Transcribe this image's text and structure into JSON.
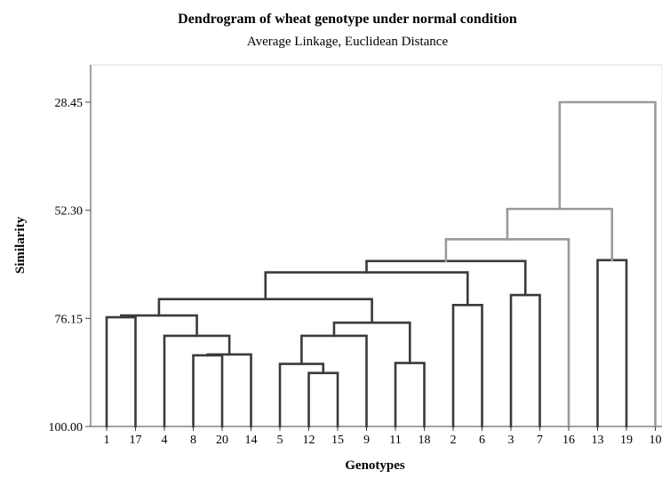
{
  "chart_data": {
    "type": "dendrogram",
    "title": "Dendrogram of wheat genotype under normal condition",
    "subtitle": "Average Linkage, Euclidean Distance",
    "xlabel": "Genotypes",
    "ylabel": "Similarity",
    "ylim": [
      28.45,
      100.0
    ],
    "y_ticks": [
      "28.45",
      "52.30",
      "76.15",
      "100.00"
    ],
    "leaf_order": [
      "1",
      "17",
      "4",
      "8",
      "20",
      "14",
      "5",
      "12",
      "15",
      "9",
      "11",
      "18",
      "2",
      "6",
      "3",
      "7",
      "16",
      "13",
      "19",
      "10"
    ],
    "colors": {
      "dark": "#3a3a3a",
      "light": "#9a9a9a"
    },
    "merges": [
      {
        "left": "1",
        "right": "17",
        "similarity": 75.9,
        "color": "dark"
      },
      {
        "left": "8",
        "right": "20",
        "similarity": 84.3,
        "color": "dark"
      },
      {
        "left": "8+20",
        "right": "14",
        "similarity": 84.1,
        "color": "dark"
      },
      {
        "left": "4",
        "right": "8+20+14",
        "similarity": 80.0,
        "color": "dark"
      },
      {
        "left": "1+17",
        "right": "4+8+20+14",
        "similarity": 75.5,
        "color": "dark"
      },
      {
        "left": "12",
        "right": "15",
        "similarity": 88.2,
        "color": "dark"
      },
      {
        "left": "5",
        "right": "12+15",
        "similarity": 86.2,
        "color": "dark"
      },
      {
        "left": "5+12+15",
        "right": "9",
        "similarity": 80.0,
        "color": "dark"
      },
      {
        "left": "11",
        "right": "18",
        "similarity": 86.0,
        "color": "dark"
      },
      {
        "left": "5+12+15+9",
        "right": "11+18",
        "similarity": 77.1,
        "color": "dark"
      },
      {
        "left": "1+17+4+8+20+14",
        "right": "5+12+15+9+11+18",
        "similarity": 71.9,
        "color": "dark"
      },
      {
        "left": "2",
        "right": "6",
        "similarity": 73.2,
        "color": "dark"
      },
      {
        "left": "cluster A",
        "right": "2+6",
        "similarity": 66.0,
        "color": "dark"
      },
      {
        "left": "3",
        "right": "7",
        "similarity": 71.0,
        "color": "dark"
      },
      {
        "left": "cluster A+2+6",
        "right": "3+7",
        "similarity": 63.5,
        "color": "dark"
      },
      {
        "left": "13",
        "right": "19",
        "similarity": 63.3,
        "color": "dark"
      },
      {
        "left": "...+3+7",
        "right": "16",
        "similarity": 58.7,
        "color": "light"
      },
      {
        "left": "...+16",
        "right": "13+19",
        "similarity": 52.0,
        "color": "light"
      },
      {
        "left": "...+13+19",
        "right": "10",
        "similarity": 28.45,
        "color": "light"
      }
    ]
  }
}
